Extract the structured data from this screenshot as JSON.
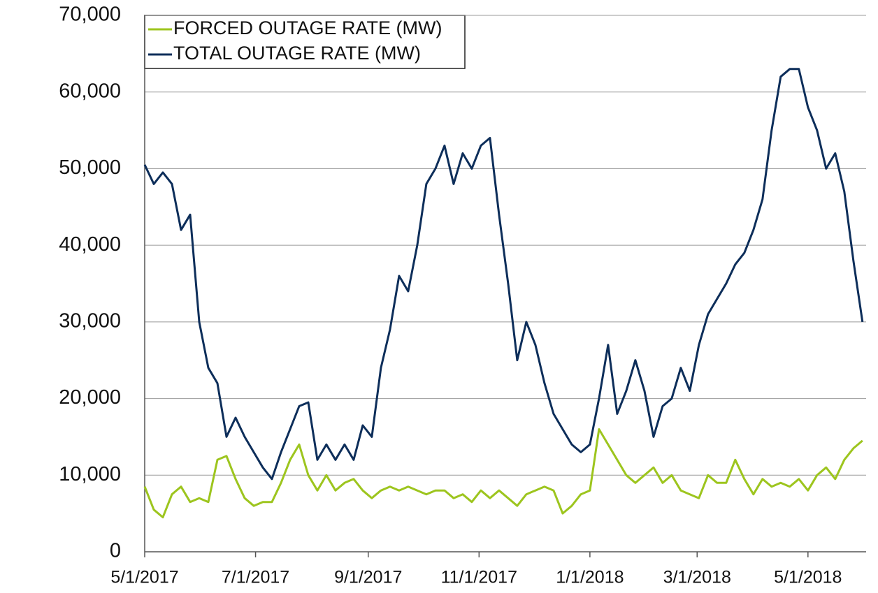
{
  "chart_data": {
    "type": "line",
    "x": [
      "5/1/2017",
      "5/6/2017",
      "5/11/2017",
      "5/16/2017",
      "5/21/2017",
      "5/26/2017",
      "5/31/2017",
      "6/5/2017",
      "6/10/2017",
      "6/15/2017",
      "6/20/2017",
      "6/25/2017",
      "6/30/2017",
      "7/5/2017",
      "7/10/2017",
      "7/15/2017",
      "7/20/2017",
      "7/25/2017",
      "7/30/2017",
      "8/4/2017",
      "8/9/2017",
      "8/14/2017",
      "8/19/2017",
      "8/24/2017",
      "8/29/2017",
      "9/3/2017",
      "9/8/2017",
      "9/13/2017",
      "9/18/2017",
      "9/23/2017",
      "9/28/2017",
      "10/3/2017",
      "10/8/2017",
      "10/13/2017",
      "10/18/2017",
      "10/23/2017",
      "10/28/2017",
      "11/2/2017",
      "11/7/2017",
      "11/12/2017",
      "11/17/2017",
      "11/22/2017",
      "11/27/2017",
      "12/2/2017",
      "12/7/2017",
      "12/12/2017",
      "12/17/2017",
      "12/22/2017",
      "12/27/2017",
      "1/1/2018",
      "1/6/2018",
      "1/11/2018",
      "1/16/2018",
      "1/21/2018",
      "1/26/2018",
      "1/31/2018",
      "2/5/2018",
      "2/10/2018",
      "2/15/2018",
      "2/20/2018",
      "2/25/2018",
      "3/2/2018",
      "3/7/2018",
      "3/12/2018",
      "3/17/2018",
      "3/22/2018",
      "3/27/2018",
      "4/1/2018",
      "4/6/2018",
      "4/11/2018",
      "4/16/2018",
      "4/21/2018",
      "4/26/2018",
      "5/1/2018",
      "5/6/2018",
      "5/11/2018",
      "5/16/2018",
      "5/21/2018",
      "5/26/2018",
      "5/31/2018"
    ],
    "series": [
      {
        "name": "FORCED OUTAGE RATE (MW)",
        "color": "#9dc51e",
        "values": [
          8500,
          5500,
          4500,
          7500,
          8500,
          6500,
          7000,
          6500,
          12000,
          12500,
          9500,
          7000,
          6000,
          6500,
          6500,
          9000,
          12000,
          14000,
          10000,
          8000,
          10000,
          8000,
          9000,
          9500,
          8000,
          7000,
          8000,
          8500,
          8000,
          8500,
          8000,
          7500,
          8000,
          8000,
          7000,
          7500,
          6500,
          8000,
          7000,
          8000,
          7000,
          6000,
          7500,
          8000,
          8500,
          8000,
          5000,
          6000,
          7500,
          8000,
          16000,
          14000,
          12000,
          10000,
          9000,
          10000,
          11000,
          9000,
          10000,
          8000,
          7500,
          7000,
          10000,
          9000,
          9000,
          12000,
          9500,
          7500,
          9500,
          8500,
          9000,
          8500,
          9500,
          8000,
          10000,
          11000,
          9500,
          12000,
          13500,
          14500
        ]
      },
      {
        "name": "TOTAL OUTAGE RATE (MW)",
        "color": "#0d2e5a",
        "values": [
          50500,
          48000,
          49500,
          48000,
          42000,
          44000,
          30000,
          24000,
          22000,
          15000,
          17500,
          15000,
          13000,
          11000,
          9500,
          13000,
          16000,
          19000,
          19500,
          12000,
          14000,
          12000,
          14000,
          12000,
          16500,
          15000,
          24000,
          29000,
          36000,
          34000,
          40000,
          48000,
          50000,
          53000,
          48000,
          52000,
          50000,
          53000,
          54000,
          44000,
          35000,
          25000,
          30000,
          27000,
          22000,
          18000,
          16000,
          14000,
          13000,
          14000,
          20000,
          27000,
          18000,
          21000,
          25000,
          21000,
          15000,
          19000,
          20000,
          24000,
          21000,
          27000,
          31000,
          33000,
          35000,
          37500,
          39000,
          42000,
          46000,
          55000,
          62000,
          63000,
          63000,
          58000,
          55000,
          50000,
          52000,
          47000,
          38000,
          30000
        ]
      }
    ],
    "xlim": [
      "5/1/2017",
      "6/2/2018"
    ],
    "xticks": [
      "5/1/2017",
      "7/1/2017",
      "9/1/2017",
      "11/1/2017",
      "1/1/2018",
      "3/1/2018",
      "5/1/2018"
    ],
    "ylim": [
      0,
      70000
    ],
    "yticks": [
      0,
      {
        "value": 10000,
        "label": "10,000"
      },
      {
        "value": 20000,
        "label": "20,000"
      },
      {
        "value": 30000,
        "label": "30,000"
      },
      {
        "value": 40000,
        "label": "40,000"
      },
      {
        "value": 50000,
        "label": "50,000"
      },
      {
        "value": 60000,
        "label": "60,000"
      },
      {
        "value": 70000,
        "label": "70,000"
      }
    ],
    "grid": true
  }
}
